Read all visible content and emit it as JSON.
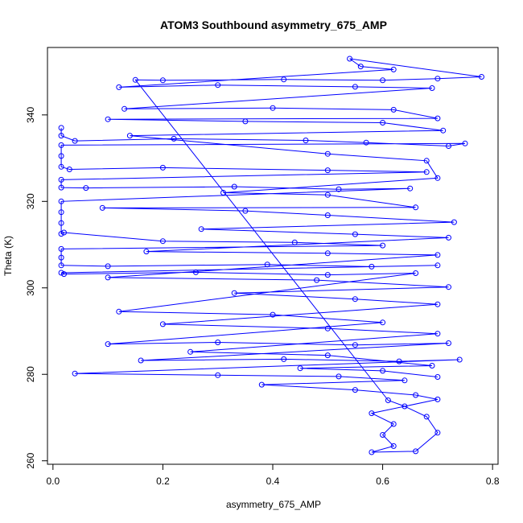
{
  "chart_data": {
    "type": "line",
    "title": "ATOM3 Southbound asymmetry_675_AMP",
    "xlabel": "asymmetry_675_AMP",
    "ylabel": "Theta (K)",
    "xlim": [
      -0.01,
      0.81
    ],
    "ylim": [
      259.2,
      355.6
    ],
    "xticks": [
      0.0,
      0.2,
      0.4,
      0.6,
      0.8
    ],
    "xtick_labels": [
      "0.0",
      "0.2",
      "0.4",
      "0.6",
      "0.8"
    ],
    "yticks": [
      260,
      280,
      300,
      320,
      340
    ],
    "ytick_labels": [
      "260",
      "280",
      "300",
      "320",
      "340"
    ],
    "grid": false,
    "legend": "none",
    "marker": "open-circle",
    "series_color": "#0000ff",
    "series": [
      {
        "points": [
          [
            0.015,
            337.0
          ],
          [
            0.015,
            335.2
          ],
          [
            0.04,
            334.0
          ],
          [
            0.22,
            334.5
          ],
          [
            0.46,
            334.1
          ],
          [
            0.57,
            333.6
          ],
          [
            0.72,
            332.8
          ],
          [
            0.75,
            333.4
          ],
          [
            0.015,
            333.0
          ],
          [
            0.015,
            330.5
          ],
          [
            0.015,
            328.0
          ],
          [
            0.03,
            327.4
          ],
          [
            0.2,
            327.8
          ],
          [
            0.5,
            327.2
          ],
          [
            0.68,
            326.8
          ],
          [
            0.015,
            325.0
          ],
          [
            0.015,
            323.2
          ],
          [
            0.06,
            323.1
          ],
          [
            0.33,
            323.4
          ],
          [
            0.52,
            322.8
          ],
          [
            0.65,
            323.0
          ],
          [
            0.015,
            320.0
          ],
          [
            0.015,
            317.5
          ],
          [
            0.015,
            315.0
          ],
          [
            0.015,
            312.5
          ],
          [
            0.02,
            312.8
          ],
          [
            0.2,
            310.8
          ],
          [
            0.44,
            310.5
          ],
          [
            0.6,
            309.8
          ],
          [
            0.015,
            309.0
          ],
          [
            0.015,
            307.0
          ],
          [
            0.015,
            305.2
          ],
          [
            0.1,
            305.0
          ],
          [
            0.39,
            305.4
          ],
          [
            0.58,
            304.9
          ],
          [
            0.7,
            305.2
          ],
          [
            0.015,
            303.5
          ],
          [
            0.02,
            303.2
          ],
          [
            0.26,
            303.6
          ],
          [
            0.5,
            303.0
          ],
          [
            0.66,
            303.4
          ],
          [
            0.12,
            294.5
          ],
          [
            0.4,
            293.8
          ],
          [
            0.6,
            292.0
          ],
          [
            0.1,
            287.0
          ],
          [
            0.3,
            287.4
          ],
          [
            0.55,
            286.8
          ],
          [
            0.72,
            287.2
          ],
          [
            0.16,
            283.2
          ],
          [
            0.42,
            283.5
          ],
          [
            0.63,
            283.0
          ],
          [
            0.74,
            283.4
          ],
          [
            0.04,
            280.2
          ],
          [
            0.3,
            279.8
          ],
          [
            0.52,
            279.5
          ],
          [
            0.64,
            278.6
          ],
          [
            0.38,
            277.6
          ],
          [
            0.55,
            276.4
          ],
          [
            0.66,
            275.2
          ],
          [
            0.7,
            274.2
          ],
          [
            0.58,
            271.0
          ],
          [
            0.62,
            268.5
          ],
          [
            0.6,
            266.0
          ],
          [
            0.62,
            263.4
          ],
          [
            0.58,
            262.0
          ],
          [
            0.66,
            262.2
          ],
          [
            0.7,
            266.5
          ],
          [
            0.68,
            270.2
          ],
          [
            0.64,
            272.6
          ],
          [
            0.61,
            274.0
          ],
          [
            0.15,
            348.1
          ],
          [
            0.2,
            348.0
          ],
          [
            0.42,
            348.2
          ],
          [
            0.6,
            348.0
          ],
          [
            0.7,
            348.4
          ],
          [
            0.78,
            348.8
          ],
          [
            0.54,
            353.0
          ],
          [
            0.56,
            351.2
          ],
          [
            0.62,
            350.5
          ],
          [
            0.12,
            346.4
          ],
          [
            0.3,
            346.9
          ],
          [
            0.55,
            346.5
          ],
          [
            0.69,
            346.2
          ],
          [
            0.13,
            341.4
          ],
          [
            0.4,
            341.6
          ],
          [
            0.62,
            341.2
          ],
          [
            0.7,
            339.2
          ],
          [
            0.1,
            339.0
          ],
          [
            0.35,
            338.5
          ],
          [
            0.6,
            338.2
          ],
          [
            0.71,
            336.4
          ],
          [
            0.14,
            335.2
          ],
          [
            0.5,
            331.0
          ],
          [
            0.68,
            329.4
          ],
          [
            0.7,
            325.4
          ],
          [
            0.31,
            322.0
          ],
          [
            0.5,
            321.5
          ],
          [
            0.66,
            318.6
          ],
          [
            0.09,
            318.5
          ],
          [
            0.35,
            317.8
          ],
          [
            0.5,
            316.8
          ],
          [
            0.73,
            315.2
          ],
          [
            0.27,
            313.6
          ],
          [
            0.55,
            312.4
          ],
          [
            0.72,
            311.6
          ],
          [
            0.17,
            308.4
          ],
          [
            0.5,
            308.0
          ],
          [
            0.7,
            307.6
          ],
          [
            0.1,
            302.4
          ],
          [
            0.48,
            301.8
          ],
          [
            0.72,
            300.2
          ],
          [
            0.33,
            298.8
          ],
          [
            0.55,
            297.4
          ],
          [
            0.7,
            296.2
          ],
          [
            0.2,
            291.6
          ],
          [
            0.5,
            290.6
          ],
          [
            0.7,
            289.4
          ],
          [
            0.25,
            285.2
          ],
          [
            0.5,
            284.4
          ],
          [
            0.69,
            282.0
          ],
          [
            0.45,
            281.4
          ],
          [
            0.6,
            280.8
          ],
          [
            0.7,
            279.4
          ]
        ]
      }
    ]
  }
}
